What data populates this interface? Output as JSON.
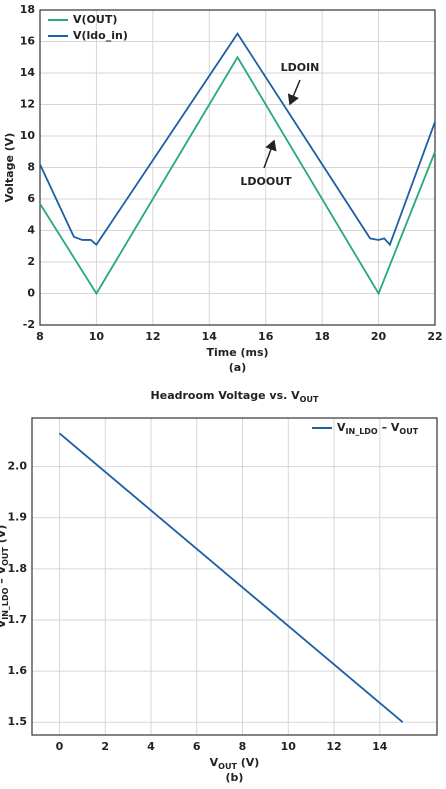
{
  "chart_data": [
    {
      "type": "line",
      "caption": "(a)",
      "x_label": "Time (ms)",
      "y_label": "Voltage (V)",
      "xlim": [
        8,
        22
      ],
      "ylim": [
        -2,
        18
      ],
      "xticks": [
        8,
        10,
        12,
        14,
        16,
        18,
        20,
        22
      ],
      "yticks": [
        -2,
        0,
        2,
        4,
        6,
        8,
        10,
        12,
        14,
        16,
        18
      ],
      "grid": true,
      "legend": "top-left",
      "series": [
        {
          "name": "V(OUT)",
          "color": "#26a97c",
          "x": [
            8,
            10,
            15,
            20,
            22
          ],
          "values": [
            5.7,
            0,
            15,
            0,
            9
          ]
        },
        {
          "name": "V(ldo_in)",
          "color": "#1c5fa3",
          "x": [
            8,
            9.2,
            9.5,
            9.8,
            10,
            15,
            19.7,
            20,
            20.2,
            20.4,
            22
          ],
          "values": [
            8.2,
            3.6,
            3.4,
            3.4,
            3.1,
            16.5,
            3.5,
            3.4,
            3.5,
            3.1,
            10.9
          ]
        }
      ],
      "annotations": [
        "LDOIN",
        "LDOOUT"
      ]
    },
    {
      "type": "line",
      "caption": "(b)",
      "title": [
        "Headroom Voltage vs. V",
        "OUT"
      ],
      "x_label": [
        "V",
        "OUT",
        " (V)"
      ],
      "y_label": [
        "V",
        "IN_LDO",
        " – V",
        "OUT",
        " (V)"
      ],
      "xlim": [
        -1.2,
        16.5
      ],
      "ylim": [
        1.475,
        2.095
      ],
      "xticks": [
        0,
        2,
        4,
        6,
        8,
        10,
        12,
        14
      ],
      "yticks": [
        1.5,
        1.6,
        1.7,
        1.8,
        1.9,
        {
          "value": 2,
          "label": "2.0"
        }
      ],
      "grid": true,
      "legend": "top-right",
      "series": [
        {
          "name": [
            "V",
            "IN_LDO",
            " – V",
            "OUT"
          ],
          "color": "#1c5fa3",
          "x": [
            0,
            15
          ],
          "values": [
            2.065,
            1.5
          ]
        }
      ]
    }
  ]
}
